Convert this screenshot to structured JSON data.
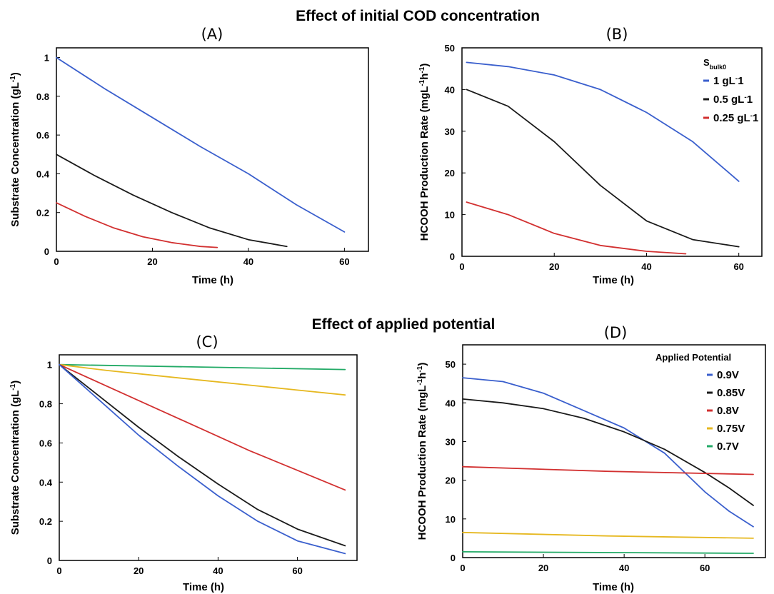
{
  "sections": {
    "top_title": "Effect of initial COD concentration",
    "bottom_title": "Effect of applied potential"
  },
  "chart_data": [
    {
      "id": "A",
      "panel_label": "(A)",
      "type": "line",
      "xlabel": "Time (h)",
      "ylabel": {
        "main": "Substrate Concentration (gL",
        "sup": "-1",
        "end": ")"
      },
      "xlim": [
        0,
        65
      ],
      "ylim": [
        0,
        1.05
      ],
      "xticks": [
        0,
        20,
        40,
        60
      ],
      "yticks": [
        0,
        0.2,
        0.4,
        0.6,
        0.8,
        1
      ],
      "series": [
        {
          "color": "#3a5fcd",
          "x": [
            0,
            10,
            20,
            30,
            40,
            50,
            60
          ],
          "y": [
            1.0,
            0.84,
            0.69,
            0.54,
            0.4,
            0.24,
            0.1
          ]
        },
        {
          "color": "#1a1a1a",
          "x": [
            0,
            8,
            16,
            24,
            32,
            40,
            48
          ],
          "y": [
            0.5,
            0.39,
            0.29,
            0.2,
            0.12,
            0.06,
            0.025
          ]
        },
        {
          "color": "#d23030",
          "x": [
            0,
            6,
            12,
            18,
            24,
            30,
            33.5
          ],
          "y": [
            0.25,
            0.18,
            0.12,
            0.075,
            0.045,
            0.025,
            0.02
          ]
        }
      ]
    },
    {
      "id": "B",
      "panel_label": "(B)",
      "type": "line",
      "xlabel": "Time (h)",
      "ylabel": {
        "main": "HCOOH Production Rate (mgL",
        "sup": "-1",
        "mid": "h",
        "sup2": "-1",
        "end": ")"
      },
      "xlim": [
        0,
        65
      ],
      "ylim": [
        0,
        50
      ],
      "xticks": [
        0,
        20,
        40,
        60
      ],
      "yticks": [
        0,
        10,
        20,
        30,
        40,
        50
      ],
      "legend": {
        "title_main": "S",
        "title_sub": "bulk0",
        "entries": [
          {
            "label_main": "1 gL",
            "label_sup": "-",
            "label_end": "1",
            "color": "#3a5fcd"
          },
          {
            "label_main": "0.5 gL",
            "label_sup": "-",
            "label_end": "1",
            "color": "#1a1a1a"
          },
          {
            "label_main": "0.25 gL",
            "label_sup": "-",
            "label_end": "1",
            "color": "#d23030"
          }
        ]
      },
      "series": [
        {
          "color": "#3a5fcd",
          "x": [
            1,
            10,
            20,
            30,
            40,
            50,
            60
          ],
          "y": [
            46.5,
            45.5,
            43.5,
            40.0,
            34.5,
            27.5,
            18.0
          ]
        },
        {
          "color": "#1a1a1a",
          "x": [
            1,
            10,
            20,
            30,
            40,
            50,
            60
          ],
          "y": [
            40.0,
            36.0,
            27.5,
            17.0,
            8.5,
            4.0,
            2.3
          ]
        },
        {
          "color": "#d23030",
          "x": [
            1,
            10,
            20,
            30,
            40,
            48.5
          ],
          "y": [
            13.0,
            10.0,
            5.5,
            2.6,
            1.2,
            0.6
          ]
        }
      ]
    },
    {
      "id": "C",
      "panel_label": "(C)",
      "type": "line",
      "xlabel": "Time (h)",
      "ylabel": {
        "main": "Substrate Concentration (gL",
        "sup": "-1",
        "end": ")"
      },
      "xlim": [
        0,
        75
      ],
      "ylim": [
        0,
        1.05
      ],
      "xticks": [
        0,
        20,
        40,
        60
      ],
      "yticks": [
        0,
        0.2,
        0.4,
        0.6,
        0.8,
        1
      ],
      "series": [
        {
          "color": "#22aa66",
          "x": [
            0,
            72
          ],
          "y": [
            1.0,
            0.975
          ]
        },
        {
          "color": "#e6b820",
          "x": [
            0,
            12,
            24,
            36,
            48,
            60,
            72
          ],
          "y": [
            1.0,
            0.97,
            0.945,
            0.92,
            0.895,
            0.87,
            0.845
          ]
        },
        {
          "color": "#d23030",
          "x": [
            0,
            12,
            24,
            36,
            48,
            60,
            72
          ],
          "y": [
            1.0,
            0.89,
            0.78,
            0.67,
            0.56,
            0.46,
            0.36
          ]
        },
        {
          "color": "#1a1a1a",
          "x": [
            0,
            10,
            20,
            30,
            40,
            50,
            60,
            72
          ],
          "y": [
            1.0,
            0.84,
            0.68,
            0.53,
            0.39,
            0.26,
            0.16,
            0.075
          ]
        },
        {
          "color": "#3a5fcd",
          "x": [
            0,
            10,
            20,
            30,
            40,
            50,
            60,
            72
          ],
          "y": [
            1.0,
            0.82,
            0.64,
            0.48,
            0.33,
            0.2,
            0.1,
            0.035
          ]
        }
      ]
    },
    {
      "id": "D",
      "panel_label": "(D)",
      "type": "line",
      "xlabel": "Time (h)",
      "ylabel": {
        "main": "HCOOH Production Rate (mgL",
        "sup": "-1",
        "mid": "h",
        "sup2": "-1",
        "end": ")"
      },
      "xlim": [
        0,
        75
      ],
      "ylim": [
        0,
        55
      ],
      "xticks": [
        0,
        20,
        40,
        60
      ],
      "yticks": [
        0,
        10,
        20,
        30,
        40,
        50
      ],
      "legend": {
        "title_main": "Applied Potential",
        "title_sub": "",
        "entries": [
          {
            "label_main": "0.9V",
            "color": "#3a5fcd"
          },
          {
            "label_main": "0.85V",
            "color": "#1a1a1a"
          },
          {
            "label_main": "0.8V",
            "color": "#d23030"
          },
          {
            "label_main": "0.75V",
            "color": "#e6b820"
          },
          {
            "label_main": "0.7V",
            "color": "#22aa66"
          }
        ]
      },
      "series": [
        {
          "color": "#3a5fcd",
          "x": [
            0,
            10,
            20,
            30,
            40,
            50,
            60,
            66,
            72
          ],
          "y": [
            46.5,
            45.5,
            42.5,
            38.0,
            33.5,
            27.0,
            17.0,
            12.0,
            8.0
          ]
        },
        {
          "color": "#1a1a1a",
          "x": [
            0,
            10,
            20,
            30,
            40,
            50,
            60,
            66,
            72
          ],
          "y": [
            41.0,
            40.0,
            38.5,
            36.0,
            32.5,
            28.0,
            22.0,
            18.0,
            13.5
          ]
        },
        {
          "color": "#d23030",
          "x": [
            0,
            36,
            72
          ],
          "y": [
            23.5,
            22.3,
            21.5
          ]
        },
        {
          "color": "#e6b820",
          "x": [
            0,
            36,
            72
          ],
          "y": [
            6.5,
            5.6,
            5.0
          ]
        },
        {
          "color": "#22aa66",
          "x": [
            0,
            72
          ],
          "y": [
            1.5,
            1.1
          ]
        }
      ]
    }
  ]
}
